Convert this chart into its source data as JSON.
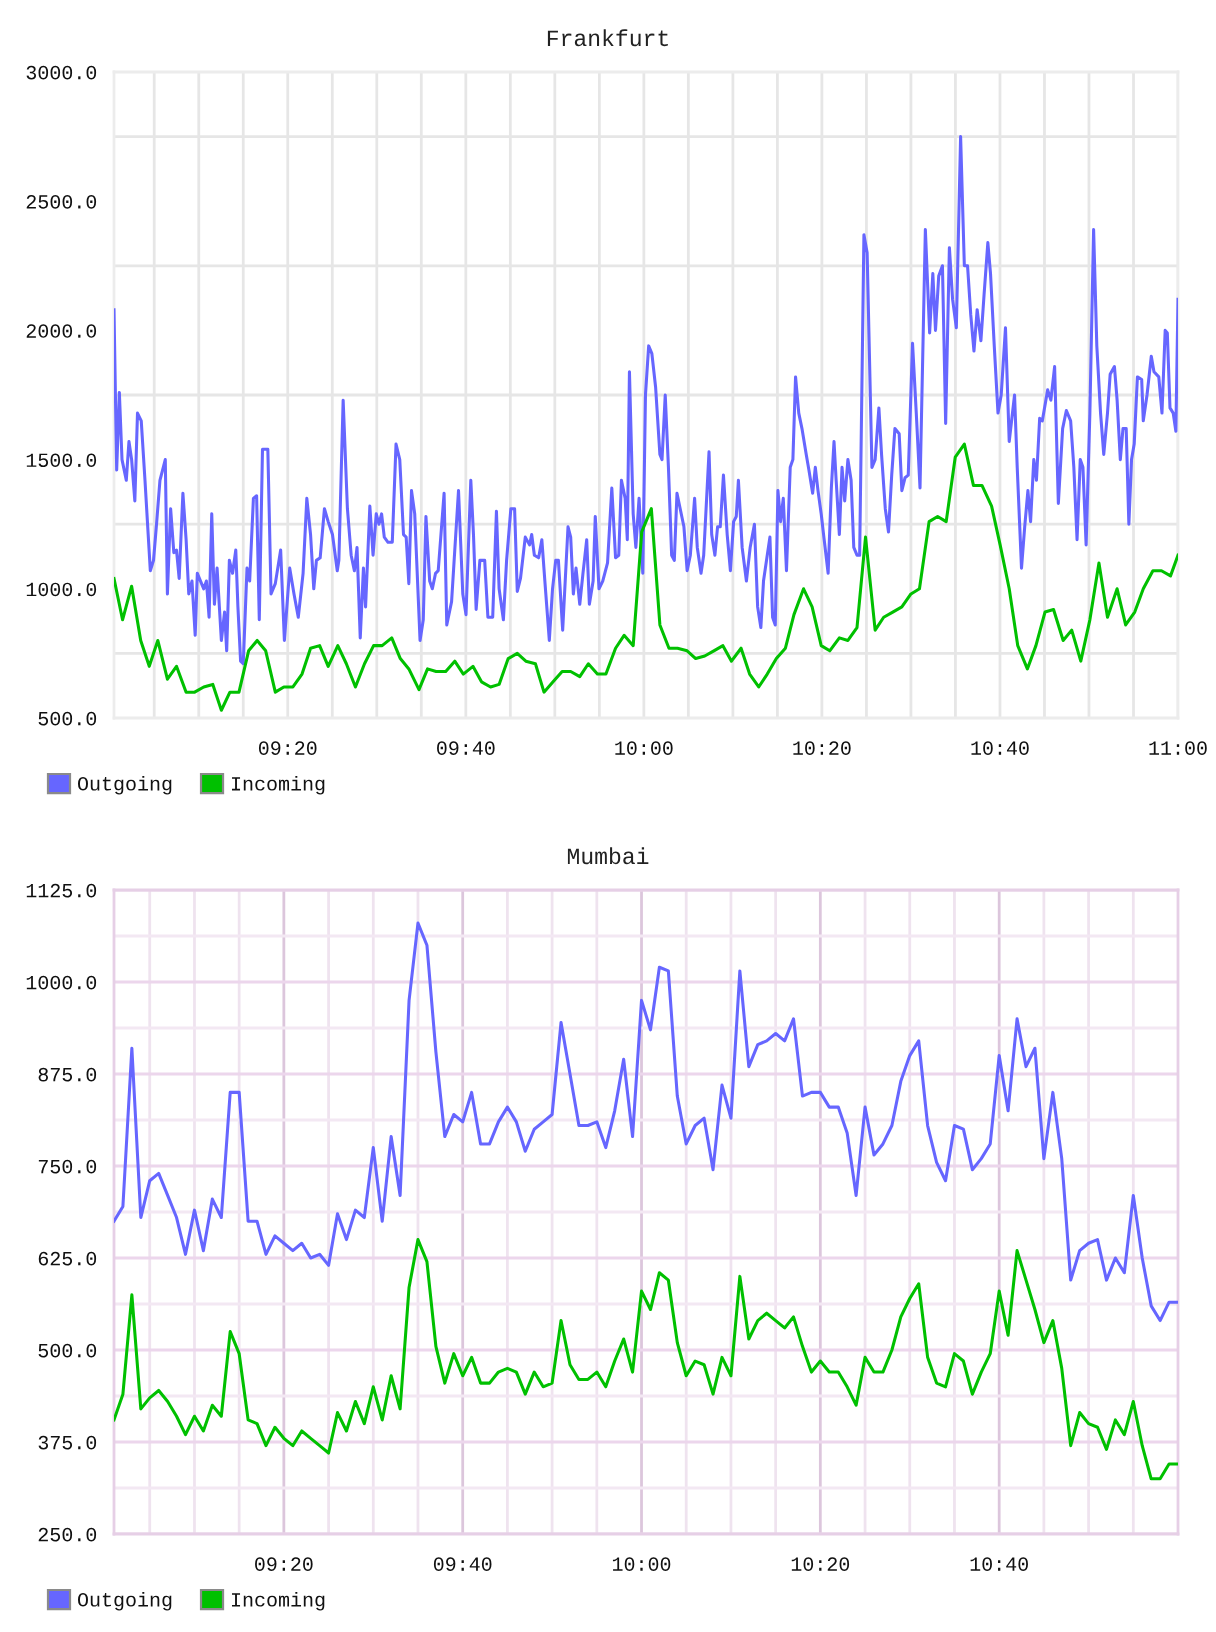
{
  "chart_data": [
    {
      "type": "line",
      "title": "Frankfurt",
      "xlim": [
        9.008,
        11.0
      ],
      "xticks": [
        {
          "value": 9.0833,
          "label": null
        },
        {
          "value": 9.1667,
          "label": null
        },
        {
          "value": 9.25,
          "label": null
        },
        {
          "value": 9.3333,
          "label": "09:20"
        },
        {
          "value": 9.4167,
          "label": null
        },
        {
          "value": 9.5,
          "label": null
        },
        {
          "value": 9.5833,
          "label": null
        },
        {
          "value": 9.6667,
          "label": "09:40"
        },
        {
          "value": 9.75,
          "label": null
        },
        {
          "value": 9.8333,
          "label": null
        },
        {
          "value": 9.9167,
          "label": null
        },
        {
          "value": 10.0,
          "label": "10:00"
        },
        {
          "value": 10.0833,
          "label": null
        },
        {
          "value": 10.1667,
          "label": null
        },
        {
          "value": 10.25,
          "label": null
        },
        {
          "value": 10.3333,
          "label": "10:20"
        },
        {
          "value": 10.4167,
          "label": null
        },
        {
          "value": 10.5,
          "label": null
        },
        {
          "value": 10.5833,
          "label": null
        },
        {
          "value": 10.6667,
          "label": "10:40"
        },
        {
          "value": 10.75,
          "label": null
        },
        {
          "value": 10.8333,
          "label": null
        },
        {
          "value": 10.9167,
          "label": null
        },
        {
          "value": 11.0,
          "label": "11:00"
        }
      ],
      "ylim": [
        500,
        3000
      ],
      "yticks": [
        {
          "value": 500,
          "label": "500.0"
        },
        {
          "value": 750,
          "label": null
        },
        {
          "value": 1000,
          "label": "1000.0"
        },
        {
          "value": 1250,
          "label": null
        },
        {
          "value": 1500,
          "label": "1500.0"
        },
        {
          "value": 1750,
          "label": null
        },
        {
          "value": 2000,
          "label": "2000.0"
        },
        {
          "value": 2250,
          "label": null
        },
        {
          "value": 2500,
          "label": "2500.0"
        },
        {
          "value": 2750,
          "label": null
        },
        {
          "value": 3000,
          "label": "3000.0"
        }
      ],
      "grid": true,
      "legend": "bottom left",
      "series": [
        {
          "name": "Outgoing",
          "color": "#6666ff",
          "x": [
            9.008,
            9.013,
            9.018,
            9.023,
            9.031,
            9.036,
            9.041,
            9.047,
            9.052,
            9.059,
            9.066,
            9.072,
            9.076,
            9.082,
            9.088,
            9.094,
            9.104,
            9.108,
            9.114,
            9.12,
            9.125,
            9.13,
            9.137,
            9.143,
            9.148,
            9.154,
            9.16,
            9.164,
            9.17,
            9.176,
            9.181,
            9.186,
            9.191,
            9.196,
            9.201,
            9.209,
            9.215,
            9.219,
            9.224,
            9.23,
            9.236,
            9.24,
            9.245,
            9.25,
            9.257,
            9.262,
            9.269,
            9.275,
            9.28,
            9.286,
            9.296,
            9.302,
            9.31,
            9.32,
            9.327,
            9.337,
            9.345,
            9.353,
            9.362,
            9.369,
            9.376,
            9.382,
            9.387,
            9.394,
            9.402,
            9.409,
            9.417,
            9.426,
            9.429,
            9.437,
            9.445,
            9.452,
            9.458,
            9.463,
            9.469,
            9.475,
            9.479,
            9.487,
            9.493,
            9.499,
            9.504,
            9.509,
            9.514,
            9.521,
            9.529,
            9.536,
            9.543,
            9.55,
            9.555,
            9.56,
            9.565,
            9.571,
            9.581,
            9.587,
            9.592,
            9.599,
            9.604,
            9.61,
            9.615,
            9.626,
            9.631,
            9.64,
            9.646,
            9.653,
            9.661,
            9.667,
            9.676,
            9.681,
            9.686,
            9.693,
            9.702,
            9.708,
            9.717,
            9.724,
            9.729,
            9.737,
            9.743,
            9.751,
            9.758,
            9.763,
            9.769,
            9.778,
            9.786,
            9.79,
            9.795,
            9.803,
            9.809,
            9.815,
            9.823,
            9.829,
            9.835,
            9.84,
            9.848,
            9.858,
            9.863,
            9.868,
            9.873,
            9.88,
            9.886,
            9.893,
            9.898,
            9.905,
            9.909,
            9.916,
            9.923,
            9.932,
            9.94,
            9.947,
            9.953,
            9.958,
            9.965,
            9.969,
            9.973,
            9.98,
            9.985,
            9.991,
            9.998,
            10.003,
            10.009,
            10.015,
            10.022,
            10.03,
            10.034,
            10.04,
            10.046,
            10.052,
            10.057,
            10.062,
            10.068,
            10.075,
            10.081,
            10.087,
            10.095,
            10.1,
            10.107,
            10.112,
            10.122,
            10.127,
            10.133,
            10.138,
            10.143,
            10.149,
            10.156,
            10.162,
            10.168,
            10.173,
            10.177,
            10.184,
            10.192,
            10.199,
            10.207,
            10.213,
            10.219,
            10.224,
            10.231,
            10.236,
            10.241,
            10.246,
            10.251,
            10.256,
            10.261,
            10.267,
            10.274,
            10.279,
            10.284,
            10.29,
            10.296,
            10.304,
            10.309,
            10.316,
            10.321,
            10.326,
            10.332,
            10.337,
            10.345,
            10.351,
            10.356,
            10.36,
            10.366,
            10.371,
            10.376,
            10.382,
            10.388,
            10.393,
            10.399,
            10.404,
            10.412,
            10.418,
            10.427,
            10.433,
            10.44,
            10.445,
            10.452,
            10.458,
            10.464,
            10.47,
            10.478,
            10.483,
            10.489,
            10.495,
            10.503,
            10.51,
            10.517,
            10.527,
            10.535,
            10.541,
            10.546,
            10.552,
            10.559,
            10.565,
            10.572,
            10.578,
            10.585,
            10.593,
            10.6,
            10.606,
            10.612,
            10.618,
            10.624,
            10.631,
            10.637,
            10.644,
            10.649,
            10.656,
            10.663,
            10.669,
            10.677,
            10.684,
            10.694,
            10.699,
            10.707,
            10.713,
            10.719,
            10.724,
            10.73,
            10.735,
            10.741,
            10.746,
            10.756,
            10.762,
            10.769,
            10.776,
            10.784,
            10.791,
            10.799,
            10.805,
            10.811,
            10.817,
            10.822,
            10.828,
            10.835,
            10.842,
            10.848,
            10.855,
            10.861,
            10.868,
            10.873,
            10.881,
            10.886,
            10.892,
            10.897,
            10.903,
            10.908,
            10.913,
            10.918,
            10.924,
            10.932,
            10.935,
            10.942,
            10.95,
            10.955,
            10.964,
            10.97,
            10.976,
            10.98,
            10.985,
            10.991,
            10.996,
            11.0
          ],
          "values": [
            2080,
            1460,
            1760,
            1500,
            1420,
            1570,
            1500,
            1340,
            1680,
            1650,
            1420,
            1210,
            1070,
            1110,
            1260,
            1420,
            1500,
            980,
            1310,
            1140,
            1150,
            1040,
            1370,
            1190,
            980,
            1030,
            820,
            1060,
            1030,
            1000,
            1030,
            890,
            1290,
            940,
            1080,
            800,
            910,
            760,
            1110,
            1060,
            1150,
            930,
            720,
            710,
            1080,
            1030,
            1350,
            1360,
            880,
            1540,
            1540,
            980,
            1020,
            1150,
            800,
            1080,
            980,
            890,
            1060,
            1350,
            1210,
            1000,
            1110,
            1120,
            1310,
            1260,
            1210,
            1070,
            1110,
            1730,
            1310,
            1130,
            1070,
            1160,
            810,
            1080,
            930,
            1320,
            1130,
            1290,
            1250,
            1290,
            1200,
            1180,
            1180,
            1560,
            1500,
            1210,
            1200,
            1020,
            1380,
            1290,
            800,
            880,
            1280,
            1030,
            1000,
            1060,
            1070,
            1370,
            860,
            950,
            1150,
            1380,
            980,
            900,
            1420,
            1210,
            920,
            1110,
            1110,
            890,
            890,
            1300,
            1000,
            880,
            1110,
            1310,
            1310,
            990,
            1040,
            1200,
            1170,
            1210,
            1130,
            1120,
            1190,
            1020,
            800,
            1000,
            1110,
            1110,
            840,
            1240,
            1200,
            980,
            1080,
            940,
            1060,
            1190,
            940,
            1030,
            1280,
            1000,
            1030,
            1100,
            1390,
            1120,
            1130,
            1420,
            1350,
            1190,
            1840,
            1290,
            1160,
            1350,
            1060,
            1750,
            1940,
            1910,
            1780,
            1520,
            1500,
            1750,
            1470,
            1130,
            1110,
            1370,
            1310,
            1240,
            1070,
            1130,
            1350,
            1160,
            1060,
            1130,
            1530,
            1210,
            1130,
            1240,
            1240,
            1440,
            1210,
            1070,
            1260,
            1280,
            1420,
            1160,
            1030,
            1160,
            1250,
            930,
            850,
            1030,
            1130,
            1200,
            890,
            860,
            1380,
            1260,
            1350,
            1070,
            1470,
            1500,
            1820,
            1680,
            1620,
            1520,
            1460,
            1370,
            1470,
            1380,
            1290,
            1200,
            1060,
            1390,
            1570,
            1420,
            1210,
            1470,
            1340,
            1500,
            1420,
            1160,
            1130,
            1130,
            2370,
            2300,
            1470,
            1500,
            1700,
            1520,
            1310,
            1220,
            1440,
            1620,
            1600,
            1380,
            1430,
            1440,
            1950,
            1680,
            1390,
            2390,
            1990,
            2220,
            2000,
            2210,
            2250,
            1640,
            2320,
            2120,
            2010,
            2750,
            2250,
            2250,
            2060,
            1920,
            2080,
            1960,
            2140,
            2340,
            2220,
            1940,
            1680,
            1750,
            2010,
            1570,
            1750,
            1470,
            1080,
            1240,
            1380,
            1260,
            1500,
            1420,
            1660,
            1650,
            1770,
            1730,
            1860,
            1330,
            1620,
            1690,
            1650,
            1470,
            1190,
            1500,
            1470,
            1170,
            1680,
            2390,
            1940,
            1680,
            1520,
            1680,
            1830,
            1860,
            1730,
            1500,
            1620,
            1620,
            1250,
            1500,
            1560,
            1820,
            1810,
            1650,
            1750,
            1900,
            1840,
            1820,
            1680,
            2000,
            1990,
            1700,
            1680,
            1610,
            2120
          ]
        },
        {
          "name": "Incoming",
          "color": "#00c000",
          "x": [
            9.008,
            9.024,
            9.041,
            9.058,
            9.074,
            9.09,
            9.108,
            9.125,
            9.143,
            9.159,
            9.176,
            9.193,
            9.209,
            9.225,
            9.242,
            9.26,
            9.276,
            9.292,
            9.31,
            9.326,
            9.343,
            9.36,
            9.376,
            9.393,
            9.409,
            9.427,
            9.443,
            9.46,
            9.477,
            9.494,
            9.51,
            9.528,
            9.544,
            9.56,
            9.579,
            9.595,
            9.611,
            9.629,
            9.646,
            9.662,
            9.68,
            9.696,
            9.713,
            9.729,
            9.746,
            9.763,
            9.779,
            9.797,
            9.813,
            9.83,
            9.847,
            9.863,
            9.88,
            9.896,
            9.913,
            9.929,
            9.947,
            9.963,
            9.98,
            9.996,
            10.014,
            10.03,
            10.047,
            10.063,
            10.081,
            10.097,
            10.114,
            10.131,
            10.148,
            10.164,
            10.182,
            10.198,
            10.215,
            10.231,
            10.248,
            10.265,
            10.281,
            10.299,
            10.315,
            10.332,
            10.348,
            10.366,
            10.382,
            10.399,
            10.415,
            10.433,
            10.449,
            10.466,
            10.483,
            10.5,
            10.516,
            10.534,
            10.55,
            10.566,
            10.583,
            10.6,
            10.617,
            10.633,
            10.651,
            10.667,
            10.684,
            10.7,
            10.718,
            10.734,
            10.751,
            10.767,
            10.785,
            10.801,
            10.818,
            10.835,
            10.852,
            10.868,
            10.886,
            10.902,
            10.919,
            10.935,
            10.953,
            10.969,
            10.986,
            11.0
          ],
          "values": [
            1040,
            880,
            1010,
            800,
            700,
            800,
            650,
            700,
            600,
            600,
            620,
            630,
            530,
            600,
            600,
            760,
            800,
            760,
            600,
            620,
            620,
            670,
            770,
            780,
            700,
            780,
            710,
            620,
            710,
            780,
            780,
            810,
            730,
            690,
            610,
            690,
            680,
            680,
            720,
            670,
            700,
            640,
            620,
            630,
            730,
            750,
            720,
            710,
            600,
            640,
            680,
            680,
            660,
            710,
            670,
            670,
            770,
            820,
            780,
            1220,
            1310,
            860,
            770,
            770,
            760,
            730,
            740,
            760,
            780,
            720,
            770,
            670,
            620,
            670,
            730,
            770,
            900,
            1000,
            930,
            780,
            760,
            810,
            800,
            850,
            1200,
            840,
            890,
            910,
            930,
            980,
            1000,
            1260,
            1280,
            1260,
            1510,
            1560,
            1400,
            1400,
            1320,
            1170,
            1000,
            780,
            690,
            780,
            910,
            920,
            800,
            840,
            720,
            880,
            1100,
            890,
            1000,
            860,
            910,
            1000,
            1070,
            1070,
            1050,
            1130
          ]
        }
      ]
    },
    {
      "type": "line",
      "title": "Mumbai",
      "xlim": [
        9.0167,
        11.0
      ],
      "x": [
        9.0167,
        9.0333,
        9.05,
        9.0667,
        9.0833,
        9.1,
        9.1167,
        9.1333,
        9.15,
        9.1667,
        9.1833,
        9.2,
        9.2167,
        9.2333,
        9.25,
        9.2667,
        9.2833,
        9.3,
        9.3167,
        9.3333,
        9.35,
        9.3667,
        9.3833,
        9.4,
        9.4167,
        9.4333,
        9.45,
        9.4667,
        9.4833,
        9.5,
        9.5167,
        9.5333,
        9.55,
        9.5667,
        9.5833,
        9.6,
        9.6167,
        9.6333,
        9.65,
        9.6667,
        9.6833,
        9.7,
        9.7167,
        9.7333,
        9.75,
        9.7667,
        9.7833,
        9.8,
        9.8167,
        9.8333,
        9.85,
        9.8667,
        9.8833,
        9.9,
        9.9167,
        9.9333,
        9.95,
        9.9667,
        9.9833,
        10.0,
        10.0167,
        10.0333,
        10.05,
        10.0667,
        10.0833,
        10.1,
        10.1167,
        10.1333,
        10.15,
        10.1667,
        10.1833,
        10.2,
        10.2167,
        10.2333,
        10.25,
        10.2667,
        10.2833,
        10.3,
        10.3167,
        10.3333,
        10.35,
        10.3667,
        10.3833,
        10.4,
        10.4167,
        10.4333,
        10.45,
        10.4667,
        10.4833,
        10.5,
        10.5167,
        10.5333,
        10.55,
        10.5667,
        10.5833,
        10.6,
        10.6167,
        10.6333,
        10.65,
        10.6667,
        10.6833,
        10.7,
        10.7167,
        10.7333,
        10.75,
        10.7667,
        10.7833,
        10.8,
        10.8167,
        10.8333,
        10.85,
        10.8667,
        10.8833,
        10.9,
        10.9167,
        10.9333,
        10.95,
        10.9667,
        10.9833,
        11.0
      ],
      "xticks": [
        {
          "value": 9.0833,
          "label": null
        },
        {
          "value": 9.1667,
          "label": null
        },
        {
          "value": 9.25,
          "label": null
        },
        {
          "value": 9.3333,
          "label": "09:20"
        },
        {
          "value": 9.4167,
          "label": null
        },
        {
          "value": 9.5,
          "label": null
        },
        {
          "value": 9.5833,
          "label": null
        },
        {
          "value": 9.6667,
          "label": "09:40"
        },
        {
          "value": 9.75,
          "label": null
        },
        {
          "value": 9.8333,
          "label": null
        },
        {
          "value": 9.9167,
          "label": null
        },
        {
          "value": 10.0,
          "label": "10:00"
        },
        {
          "value": 10.0833,
          "label": null
        },
        {
          "value": 10.1667,
          "label": null
        },
        {
          "value": 10.25,
          "label": null
        },
        {
          "value": 10.3333,
          "label": "10:20"
        },
        {
          "value": 10.4167,
          "label": null
        },
        {
          "value": 10.5,
          "label": null
        },
        {
          "value": 10.5833,
          "label": null
        },
        {
          "value": 10.6667,
          "label": "10:40"
        },
        {
          "value": 10.75,
          "label": null
        },
        {
          "value": 10.8333,
          "label": null
        },
        {
          "value": 10.9167,
          "label": null
        }
      ],
      "ylim": [
        250,
        1125
      ],
      "yticks": [
        {
          "value": 250,
          "label": "250.0"
        },
        {
          "value": 312.5,
          "label": null
        },
        {
          "value": 375,
          "label": "375.0"
        },
        {
          "value": 437.5,
          "label": null
        },
        {
          "value": 500,
          "label": "500.0"
        },
        {
          "value": 562.5,
          "label": null
        },
        {
          "value": 625,
          "label": "625.0"
        },
        {
          "value": 687.5,
          "label": null
        },
        {
          "value": 750,
          "label": "750.0"
        },
        {
          "value": 812.5,
          "label": null
        },
        {
          "value": 875,
          "label": "875.0"
        },
        {
          "value": 937.5,
          "label": null
        },
        {
          "value": 1000,
          "label": "1000.0"
        },
        {
          "value": 1062.5,
          "label": null
        },
        {
          "value": 1125,
          "label": "1125.0"
        }
      ],
      "grid": true,
      "legend": "bottom left",
      "series": [
        {
          "name": "Outgoing",
          "color": "#6666ff",
          "values": [
            675,
            695,
            910,
            680,
            730,
            740,
            710,
            680,
            630,
            690,
            635,
            705,
            680,
            850,
            850,
            675,
            675,
            630,
            655,
            645,
            635,
            645,
            625,
            630,
            615,
            685,
            650,
            690,
            680,
            775,
            675,
            790,
            710,
            975,
            1080,
            1050,
            905,
            790,
            820,
            810,
            850,
            780,
            780,
            810,
            830,
            810,
            770,
            800,
            810,
            820,
            945,
            875,
            805,
            805,
            810,
            775,
            825,
            895,
            790,
            975,
            935,
            1020,
            1015,
            845,
            780,
            805,
            815,
            745,
            860,
            815,
            1015,
            885,
            915,
            920,
            930,
            920,
            950,
            845,
            850,
            850,
            830,
            830,
            795,
            710,
            830,
            765,
            780,
            805,
            865,
            900,
            920,
            805,
            755,
            730,
            805,
            800,
            745,
            760,
            780,
            900,
            825,
            950,
            885,
            910,
            760,
            850,
            760,
            595,
            635,
            645,
            650,
            595,
            625,
            605,
            710,
            625,
            560,
            540,
            565,
            565
          ]
        },
        {
          "name": "Incoming",
          "color": "#00c000",
          "values": [
            405,
            440,
            575,
            420,
            435,
            445,
            430,
            410,
            385,
            410,
            390,
            425,
            410,
            525,
            495,
            405,
            400,
            370,
            395,
            380,
            370,
            390,
            380,
            370,
            360,
            415,
            390,
            430,
            400,
            450,
            405,
            465,
            420,
            585,
            650,
            620,
            505,
            455,
            495,
            465,
            490,
            455,
            455,
            470,
            475,
            470,
            440,
            470,
            450,
            455,
            540,
            480,
            460,
            460,
            470,
            450,
            485,
            515,
            470,
            580,
            555,
            605,
            595,
            510,
            465,
            485,
            480,
            440,
            490,
            465,
            600,
            515,
            540,
            550,
            540,
            530,
            545,
            505,
            470,
            485,
            470,
            470,
            450,
            425,
            490,
            470,
            470,
            500,
            545,
            570,
            590,
            490,
            455,
            450,
            495,
            485,
            440,
            470,
            495,
            580,
            520,
            635,
            595,
            555,
            510,
            540,
            475,
            370,
            415,
            400,
            395,
            365,
            405,
            385,
            430,
            370,
            325,
            325,
            345,
            345
          ]
        }
      ]
    }
  ]
}
